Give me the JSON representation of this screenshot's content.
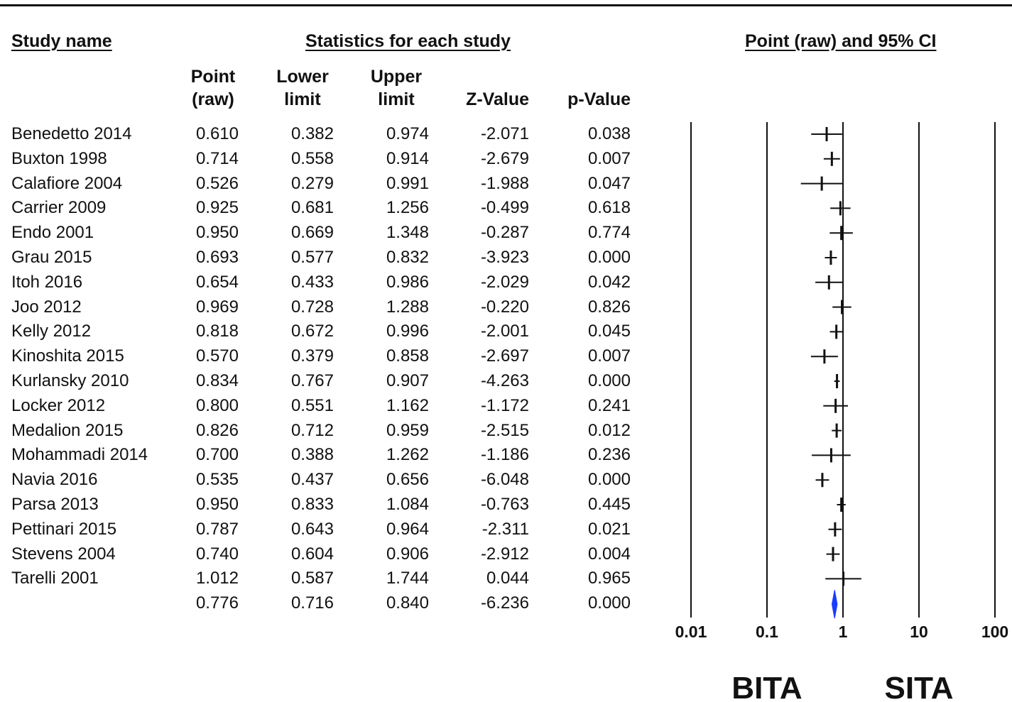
{
  "headers": {
    "study_name": "Study name",
    "statistics": "Statistics for each study",
    "plot": "Point (raw) and 95% CI"
  },
  "columns": {
    "point": [
      "Point",
      "(raw)"
    ],
    "lower": [
      "Lower",
      "limit"
    ],
    "upper": [
      "Upper",
      "limit"
    ],
    "z": "Z-Value",
    "p": "p-Value"
  },
  "chart_data": {
    "type": "forest",
    "title": "Point (raw) and 95% CI",
    "x_scale": "log",
    "xlim": [
      0.01,
      100
    ],
    "x_ticks": [
      "0.01",
      "0.1",
      "1",
      "10",
      "100"
    ],
    "side_labels": {
      "left": "BITA",
      "right": "SITA"
    },
    "rows": [
      {
        "study": "Benedetto 2014",
        "point": "0.610",
        "lower": "0.382",
        "upper": "0.974",
        "z": "-2.071",
        "p": "0.038"
      },
      {
        "study": "Buxton 1998",
        "point": "0.714",
        "lower": "0.558",
        "upper": "0.914",
        "z": "-2.679",
        "p": "0.007"
      },
      {
        "study": "Calafiore 2004",
        "point": "0.526",
        "lower": "0.279",
        "upper": "0.991",
        "z": "-1.988",
        "p": "0.047"
      },
      {
        "study": "Carrier 2009",
        "point": "0.925",
        "lower": "0.681",
        "upper": "1.256",
        "z": "-0.499",
        "p": "0.618"
      },
      {
        "study": "Endo 2001",
        "point": "0.950",
        "lower": "0.669",
        "upper": "1.348",
        "z": "-0.287",
        "p": "0.774"
      },
      {
        "study": "Grau 2015",
        "point": "0.693",
        "lower": "0.577",
        "upper": "0.832",
        "z": "-3.923",
        "p": "0.000"
      },
      {
        "study": "Itoh 2016",
        "point": "0.654",
        "lower": "0.433",
        "upper": "0.986",
        "z": "-2.029",
        "p": "0.042"
      },
      {
        "study": "Joo 2012",
        "point": "0.969",
        "lower": "0.728",
        "upper": "1.288",
        "z": "-0.220",
        "p": "0.826"
      },
      {
        "study": "Kelly 2012",
        "point": "0.818",
        "lower": "0.672",
        "upper": "0.996",
        "z": "-2.001",
        "p": "0.045"
      },
      {
        "study": "Kinoshita 2015",
        "point": "0.570",
        "lower": "0.379",
        "upper": "0.858",
        "z": "-2.697",
        "p": "0.007"
      },
      {
        "study": "Kurlansky 2010",
        "point": "0.834",
        "lower": "0.767",
        "upper": "0.907",
        "z": "-4.263",
        "p": "0.000"
      },
      {
        "study": "Locker 2012",
        "point": "0.800",
        "lower": "0.551",
        "upper": "1.162",
        "z": "-1.172",
        "p": "0.241"
      },
      {
        "study": "Medalion 2015",
        "point": "0.826",
        "lower": "0.712",
        "upper": "0.959",
        "z": "-2.515",
        "p": "0.012"
      },
      {
        "study": "Mohammadi 2014",
        "point": "0.700",
        "lower": "0.388",
        "upper": "1.262",
        "z": "-1.186",
        "p": "0.236"
      },
      {
        "study": "Navia 2016",
        "point": "0.535",
        "lower": "0.437",
        "upper": "0.656",
        "z": "-6.048",
        "p": "0.000"
      },
      {
        "study": "Parsa 2013",
        "point": "0.950",
        "lower": "0.833",
        "upper": "1.084",
        "z": "-0.763",
        "p": "0.445"
      },
      {
        "study": "Pettinari 2015",
        "point": "0.787",
        "lower": "0.643",
        "upper": "0.964",
        "z": "-2.311",
        "p": "0.021"
      },
      {
        "study": "Stevens 2004",
        "point": "0.740",
        "lower": "0.604",
        "upper": "0.906",
        "z": "-2.912",
        "p": "0.004"
      },
      {
        "study": "Tarelli 2001",
        "point": "1.012",
        "lower": "0.587",
        "upper": "1.744",
        "z": "0.044",
        "p": "0.965"
      }
    ],
    "summary": {
      "study": "",
      "point": "0.776",
      "lower": "0.716",
      "upper": "0.840",
      "z": "-6.236",
      "p": "0.000"
    },
    "colors": {
      "ink": "#111111",
      "summary": "#1a3cff"
    }
  }
}
